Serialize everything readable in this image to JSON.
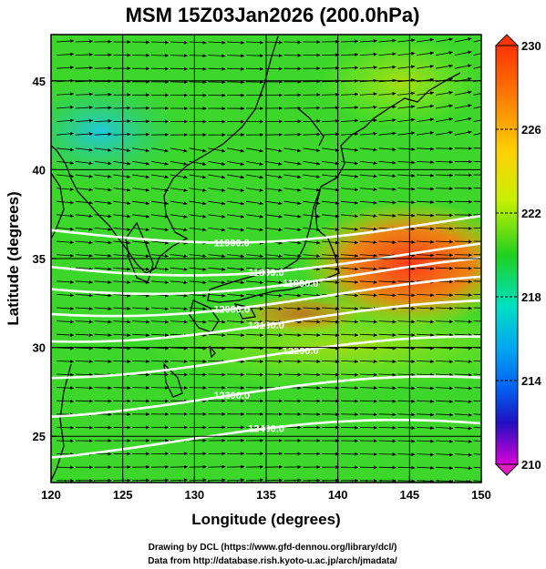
{
  "title": "MSM 15Z03Jan2026 (200.0hPa)",
  "xlabel": "Longitude (degrees)",
  "ylabel": "Latitude  (degrees)",
  "xticks": [
    "120",
    "125",
    "130",
    "135",
    "140",
    "145",
    "150"
  ],
  "yticks": [
    "25",
    "30",
    "35",
    "40",
    "45"
  ],
  "colorbar": {
    "ticks": [
      "230",
      "226",
      "222",
      "218",
      "214",
      "210"
    ],
    "min": 210,
    "max": 230
  },
  "map": {
    "lon_range": [
      120,
      150
    ],
    "lat_range": [
      22.4,
      47.6
    ],
    "grid_lons": [
      120,
      125,
      130,
      135,
      140,
      145,
      150
    ],
    "grid_lats": [
      25,
      30,
      35,
      40,
      45
    ],
    "contours": [
      {
        "label": "11900.0",
        "lat": 36.6
      },
      {
        "label": "11800.0",
        "lat": 34.8
      },
      {
        "label": "11900.0",
        "lat": 33.8
      },
      {
        "label": "12000.0",
        "lat": 32.6
      },
      {
        "label": "12100.0",
        "lat": 31.2
      },
      {
        "label": "12200.0",
        "lat": 29.2
      },
      {
        "label": "12300.0",
        "lat": 27.0
      },
      {
        "label": "12400.0",
        "lat": 24.6
      }
    ]
  },
  "credits": [
    "Drawing by DCL (https://www.gfd-dennou.org/library/dcl/)",
    "Data from http://database.rish.kyoto-u.ac.jp/arch/jmadata/"
  ]
}
